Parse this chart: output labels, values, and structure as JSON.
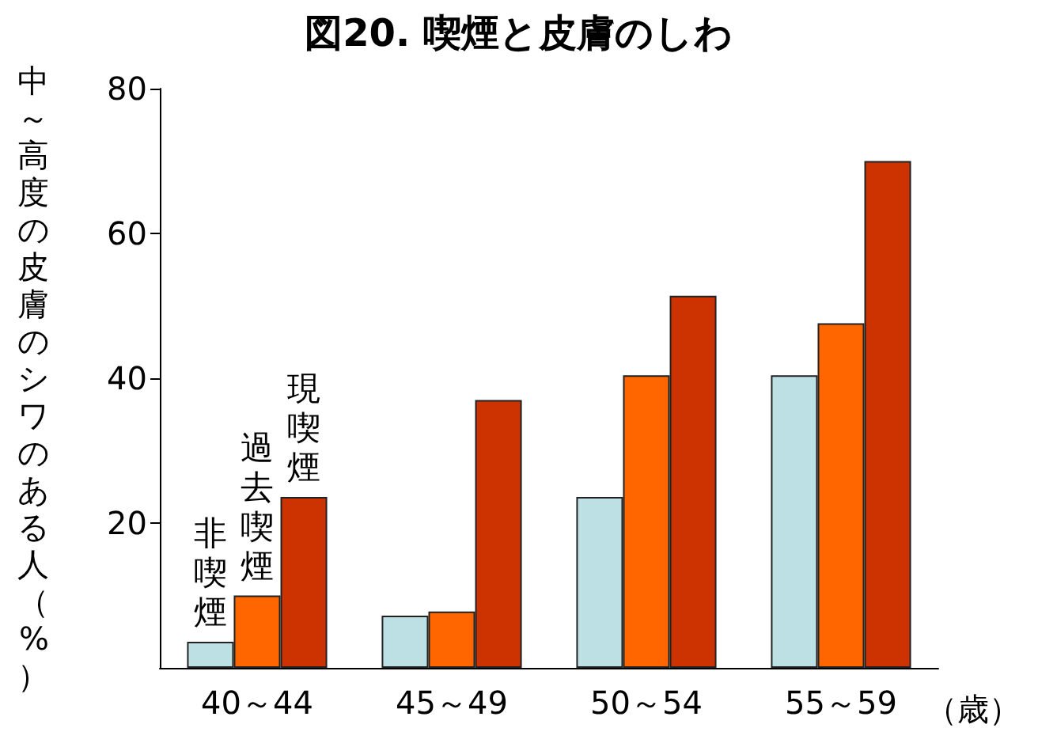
{
  "chart_data": {
    "type": "bar",
    "title": "図20. 喫煙と皮膚のしわ",
    "ylabel": "中～高度の皮膚のシワのある人（%）",
    "xlabel": "（歳）",
    "categories": [
      "40～44",
      "45～49",
      "50～54",
      "55～59"
    ],
    "series": [
      {
        "name": "非喫煙",
        "color": "#bce0e3",
        "values": [
          3.6,
          7.2,
          23.6,
          40.4
        ]
      },
      {
        "name": "過去喫煙",
        "color": "#ff6600",
        "values": [
          10,
          7.8,
          40.4,
          47.6
        ]
      },
      {
        "name": "現喫煙",
        "color": "#cc3300",
        "values": [
          23.6,
          37,
          51.4,
          70
        ]
      }
    ],
    "ylim": [
      0,
      80
    ],
    "yticks": [
      20,
      40,
      60,
      80
    ],
    "grid": false,
    "legend": false
  }
}
